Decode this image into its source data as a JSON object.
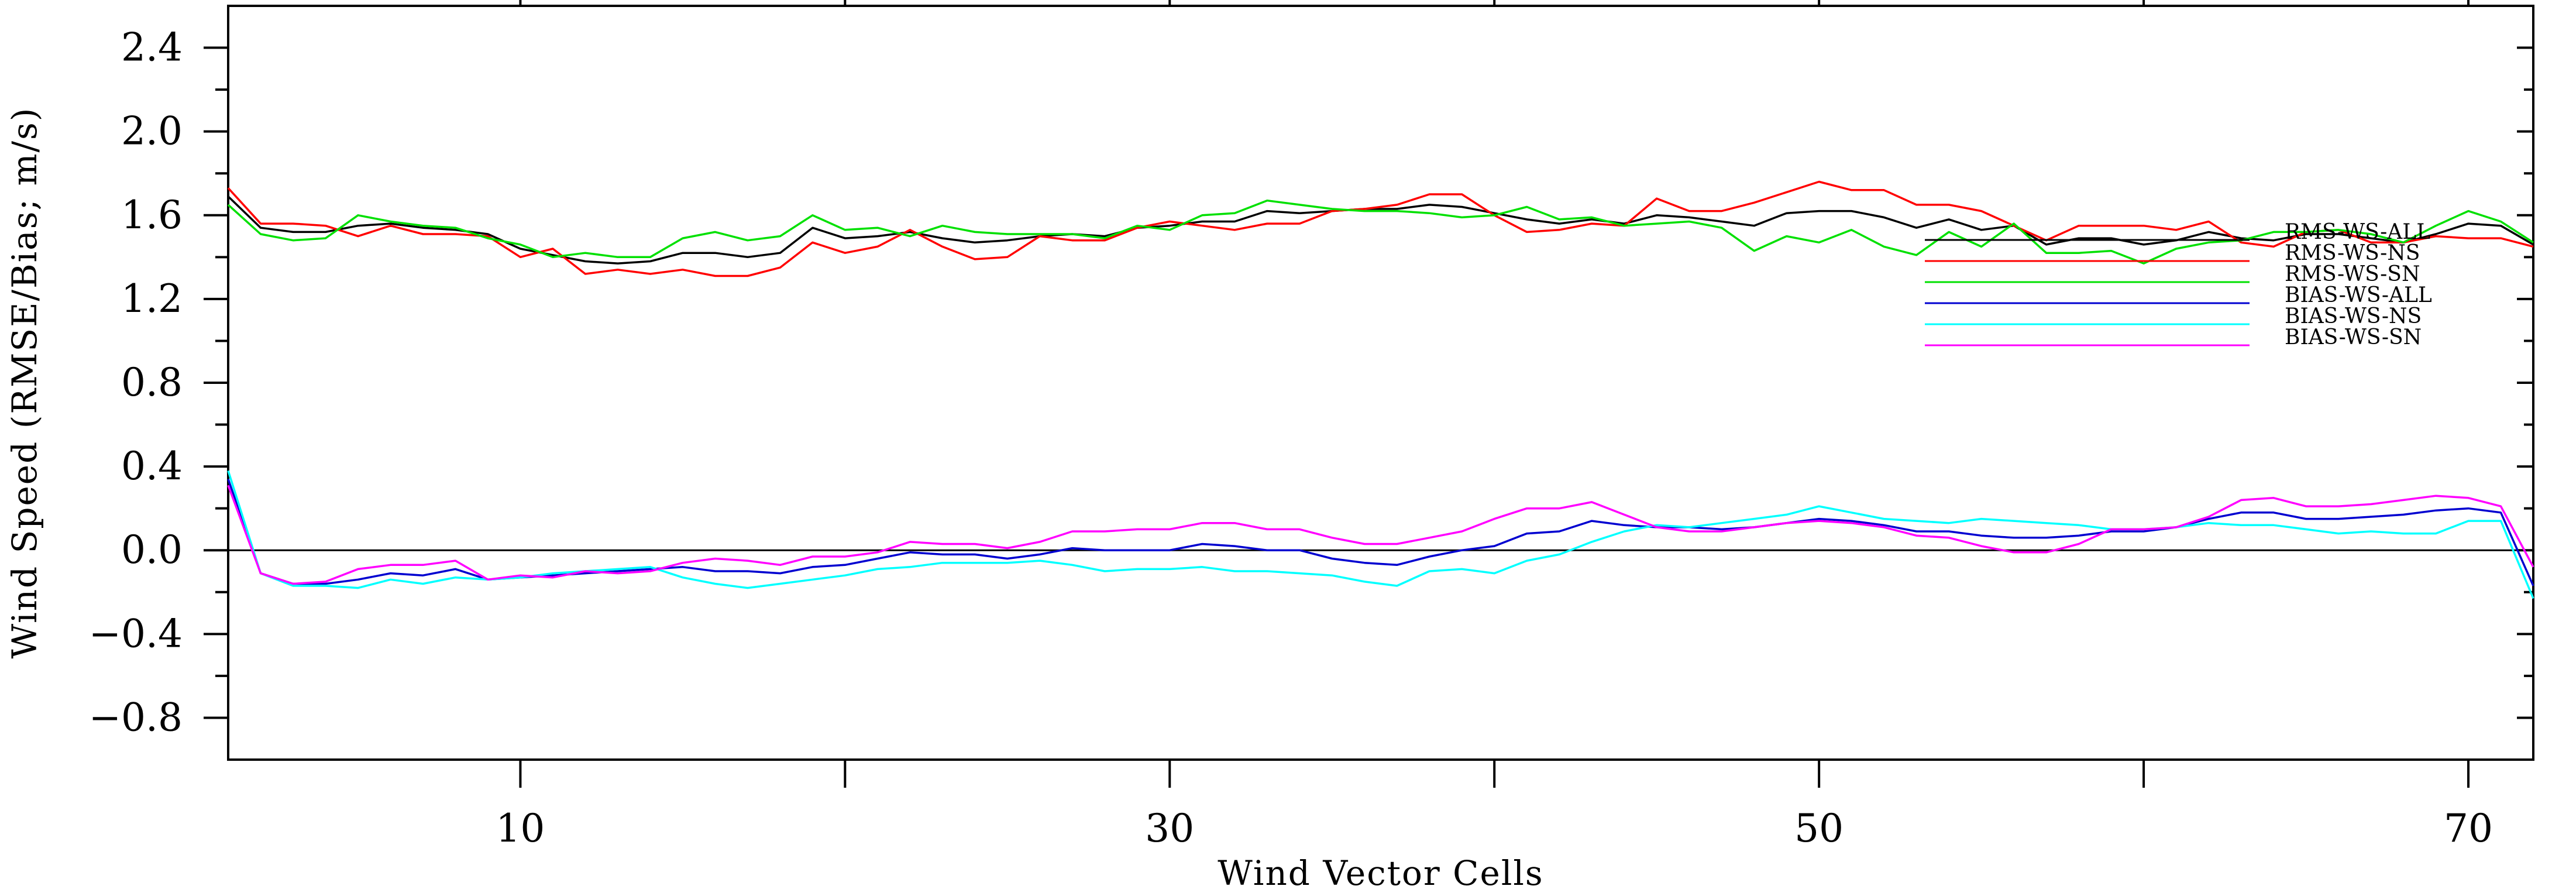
{
  "chart_data": {
    "type": "line",
    "title": "",
    "xlabel": "Wind Vector Cells",
    "ylabel": "Wind Speed (RMSE/Bias; m/s)",
    "xlim": [
      1,
      72
    ],
    "ylim": [
      -1.0,
      2.6
    ],
    "x_ticks": [
      10,
      30,
      50,
      70
    ],
    "x_minor_ticks": [
      20,
      40,
      60
    ],
    "y_ticks": [
      2.4,
      2.0,
      1.6,
      1.2,
      0.8,
      0.4,
      0.0,
      -0.4,
      -0.8
    ],
    "y_tick_labels": [
      "2.4",
      "2.0",
      "1.6",
      "1.2",
      "0.8",
      "0.4",
      "0.0",
      "−0.4",
      "−0.8"
    ],
    "grid": false,
    "zero_line": true,
    "legend_position": "right, upper middle",
    "x": [
      1,
      2,
      3,
      4,
      5,
      6,
      7,
      8,
      9,
      10,
      11,
      12,
      13,
      14,
      15,
      16,
      17,
      18,
      19,
      20,
      21,
      22,
      23,
      24,
      25,
      26,
      27,
      28,
      29,
      30,
      31,
      32,
      33,
      34,
      35,
      36,
      37,
      38,
      39,
      40,
      41,
      42,
      43,
      44,
      45,
      46,
      47,
      48,
      49,
      50,
      51,
      52,
      53,
      54,
      55,
      56,
      57,
      58,
      59,
      60,
      61,
      62,
      63,
      64,
      65,
      66,
      67,
      68,
      69,
      70,
      71,
      72
    ],
    "series": [
      {
        "name": "RMS-WS-ALL",
        "color": "#000000",
        "values": [
          1.69,
          1.54,
          1.52,
          1.52,
          1.55,
          1.56,
          1.54,
          1.53,
          1.51,
          1.44,
          1.41,
          1.38,
          1.37,
          1.38,
          1.42,
          1.42,
          1.4,
          1.42,
          1.54,
          1.49,
          1.5,
          1.52,
          1.49,
          1.47,
          1.48,
          1.5,
          1.51,
          1.5,
          1.54,
          1.55,
          1.57,
          1.57,
          1.62,
          1.61,
          1.62,
          1.63,
          1.63,
          1.65,
          1.64,
          1.61,
          1.58,
          1.56,
          1.58,
          1.56,
          1.6,
          1.59,
          1.57,
          1.55,
          1.61,
          1.62,
          1.62,
          1.59,
          1.54,
          1.58,
          1.53,
          1.55,
          1.46,
          1.49,
          1.49,
          1.46,
          1.48,
          1.52,
          1.49,
          1.48,
          1.51,
          1.51,
          1.49,
          1.47,
          1.51,
          1.56,
          1.55,
          1.46
        ]
      },
      {
        "name": "RMS-WS-NS",
        "color": "#ff0000",
        "values": [
          1.73,
          1.56,
          1.56,
          1.55,
          1.5,
          1.55,
          1.51,
          1.51,
          1.5,
          1.4,
          1.44,
          1.32,
          1.34,
          1.32,
          1.34,
          1.31,
          1.31,
          1.35,
          1.47,
          1.42,
          1.45,
          1.53,
          1.45,
          1.39,
          1.4,
          1.5,
          1.48,
          1.48,
          1.54,
          1.57,
          1.55,
          1.53,
          1.56,
          1.56,
          1.62,
          1.63,
          1.65,
          1.7,
          1.7,
          1.6,
          1.52,
          1.53,
          1.56,
          1.55,
          1.68,
          1.62,
          1.62,
          1.66,
          1.71,
          1.76,
          1.72,
          1.72,
          1.65,
          1.65,
          1.62,
          1.55,
          1.48,
          1.55,
          1.55,
          1.55,
          1.53,
          1.57,
          1.47,
          1.45,
          1.52,
          1.53,
          1.47,
          1.47,
          1.5,
          1.49,
          1.49,
          1.45
        ]
      },
      {
        "name": "RMS-WS-SN",
        "color": "#00e000",
        "values": [
          1.65,
          1.51,
          1.48,
          1.49,
          1.6,
          1.57,
          1.55,
          1.54,
          1.49,
          1.46,
          1.4,
          1.42,
          1.4,
          1.4,
          1.49,
          1.52,
          1.48,
          1.5,
          1.6,
          1.53,
          1.54,
          1.5,
          1.55,
          1.52,
          1.51,
          1.51,
          1.51,
          1.49,
          1.55,
          1.53,
          1.6,
          1.61,
          1.67,
          1.65,
          1.63,
          1.62,
          1.62,
          1.61,
          1.59,
          1.6,
          1.64,
          1.58,
          1.59,
          1.55,
          1.56,
          1.57,
          1.54,
          1.43,
          1.5,
          1.47,
          1.53,
          1.45,
          1.41,
          1.52,
          1.45,
          1.56,
          1.42,
          1.42,
          1.43,
          1.37,
          1.44,
          1.47,
          1.48,
          1.52,
          1.52,
          1.53,
          1.51,
          1.47,
          1.55,
          1.62,
          1.57,
          1.47
        ]
      },
      {
        "name": "BIAS-WS-ALL",
        "color": "#0000d0",
        "values": [
          0.34,
          -0.11,
          -0.16,
          -0.16,
          -0.14,
          -0.11,
          -0.12,
          -0.09,
          -0.14,
          -0.13,
          -0.12,
          -0.11,
          -0.1,
          -0.09,
          -0.08,
          -0.1,
          -0.1,
          -0.11,
          -0.08,
          -0.07,
          -0.04,
          -0.01,
          -0.02,
          -0.02,
          -0.04,
          -0.02,
          0.01,
          0.0,
          0.0,
          0.0,
          0.03,
          0.02,
          0.0,
          0.0,
          -0.04,
          -0.06,
          -0.07,
          -0.03,
          0.0,
          0.02,
          0.08,
          0.09,
          0.14,
          0.12,
          0.11,
          0.11,
          0.1,
          0.11,
          0.13,
          0.15,
          0.14,
          0.12,
          0.09,
          0.09,
          0.07,
          0.06,
          0.06,
          0.07,
          0.09,
          0.09,
          0.11,
          0.15,
          0.18,
          0.18,
          0.15,
          0.15,
          0.16,
          0.17,
          0.19,
          0.2,
          0.18,
          -0.17
        ]
      },
      {
        "name": "BIAS-WS-NS",
        "color": "#00ffff",
        "values": [
          0.38,
          -0.11,
          -0.17,
          -0.17,
          -0.18,
          -0.14,
          -0.16,
          -0.13,
          -0.14,
          -0.13,
          -0.11,
          -0.1,
          -0.09,
          -0.08,
          -0.13,
          -0.16,
          -0.18,
          -0.16,
          -0.14,
          -0.12,
          -0.09,
          -0.08,
          -0.06,
          -0.06,
          -0.06,
          -0.05,
          -0.07,
          -0.1,
          -0.09,
          -0.09,
          -0.08,
          -0.1,
          -0.1,
          -0.11,
          -0.12,
          -0.15,
          -0.17,
          -0.1,
          -0.09,
          -0.11,
          -0.05,
          -0.02,
          0.04,
          0.09,
          0.12,
          0.11,
          0.13,
          0.15,
          0.17,
          0.21,
          0.18,
          0.15,
          0.14,
          0.13,
          0.15,
          0.14,
          0.13,
          0.12,
          0.1,
          0.1,
          0.11,
          0.13,
          0.12,
          0.12,
          0.1,
          0.08,
          0.09,
          0.08,
          0.08,
          0.14,
          0.14,
          -0.23
        ]
      },
      {
        "name": "BIAS-WS-SN",
        "color": "#ff00ff",
        "values": [
          0.31,
          -0.11,
          -0.16,
          -0.15,
          -0.09,
          -0.07,
          -0.07,
          -0.05,
          -0.14,
          -0.12,
          -0.13,
          -0.1,
          -0.11,
          -0.1,
          -0.06,
          -0.04,
          -0.05,
          -0.07,
          -0.03,
          -0.03,
          -0.01,
          0.04,
          0.03,
          0.03,
          0.01,
          0.04,
          0.09,
          0.09,
          0.1,
          0.1,
          0.13,
          0.13,
          0.1,
          0.1,
          0.06,
          0.03,
          0.03,
          0.06,
          0.09,
          0.15,
          0.2,
          0.2,
          0.23,
          0.17,
          0.11,
          0.09,
          0.09,
          0.11,
          0.13,
          0.14,
          0.13,
          0.11,
          0.07,
          0.06,
          0.02,
          -0.01,
          -0.01,
          0.03,
          0.1,
          0.1,
          0.11,
          0.16,
          0.24,
          0.25,
          0.21,
          0.21,
          0.22,
          0.24,
          0.26,
          0.25,
          0.21,
          -0.08
        ]
      }
    ]
  }
}
